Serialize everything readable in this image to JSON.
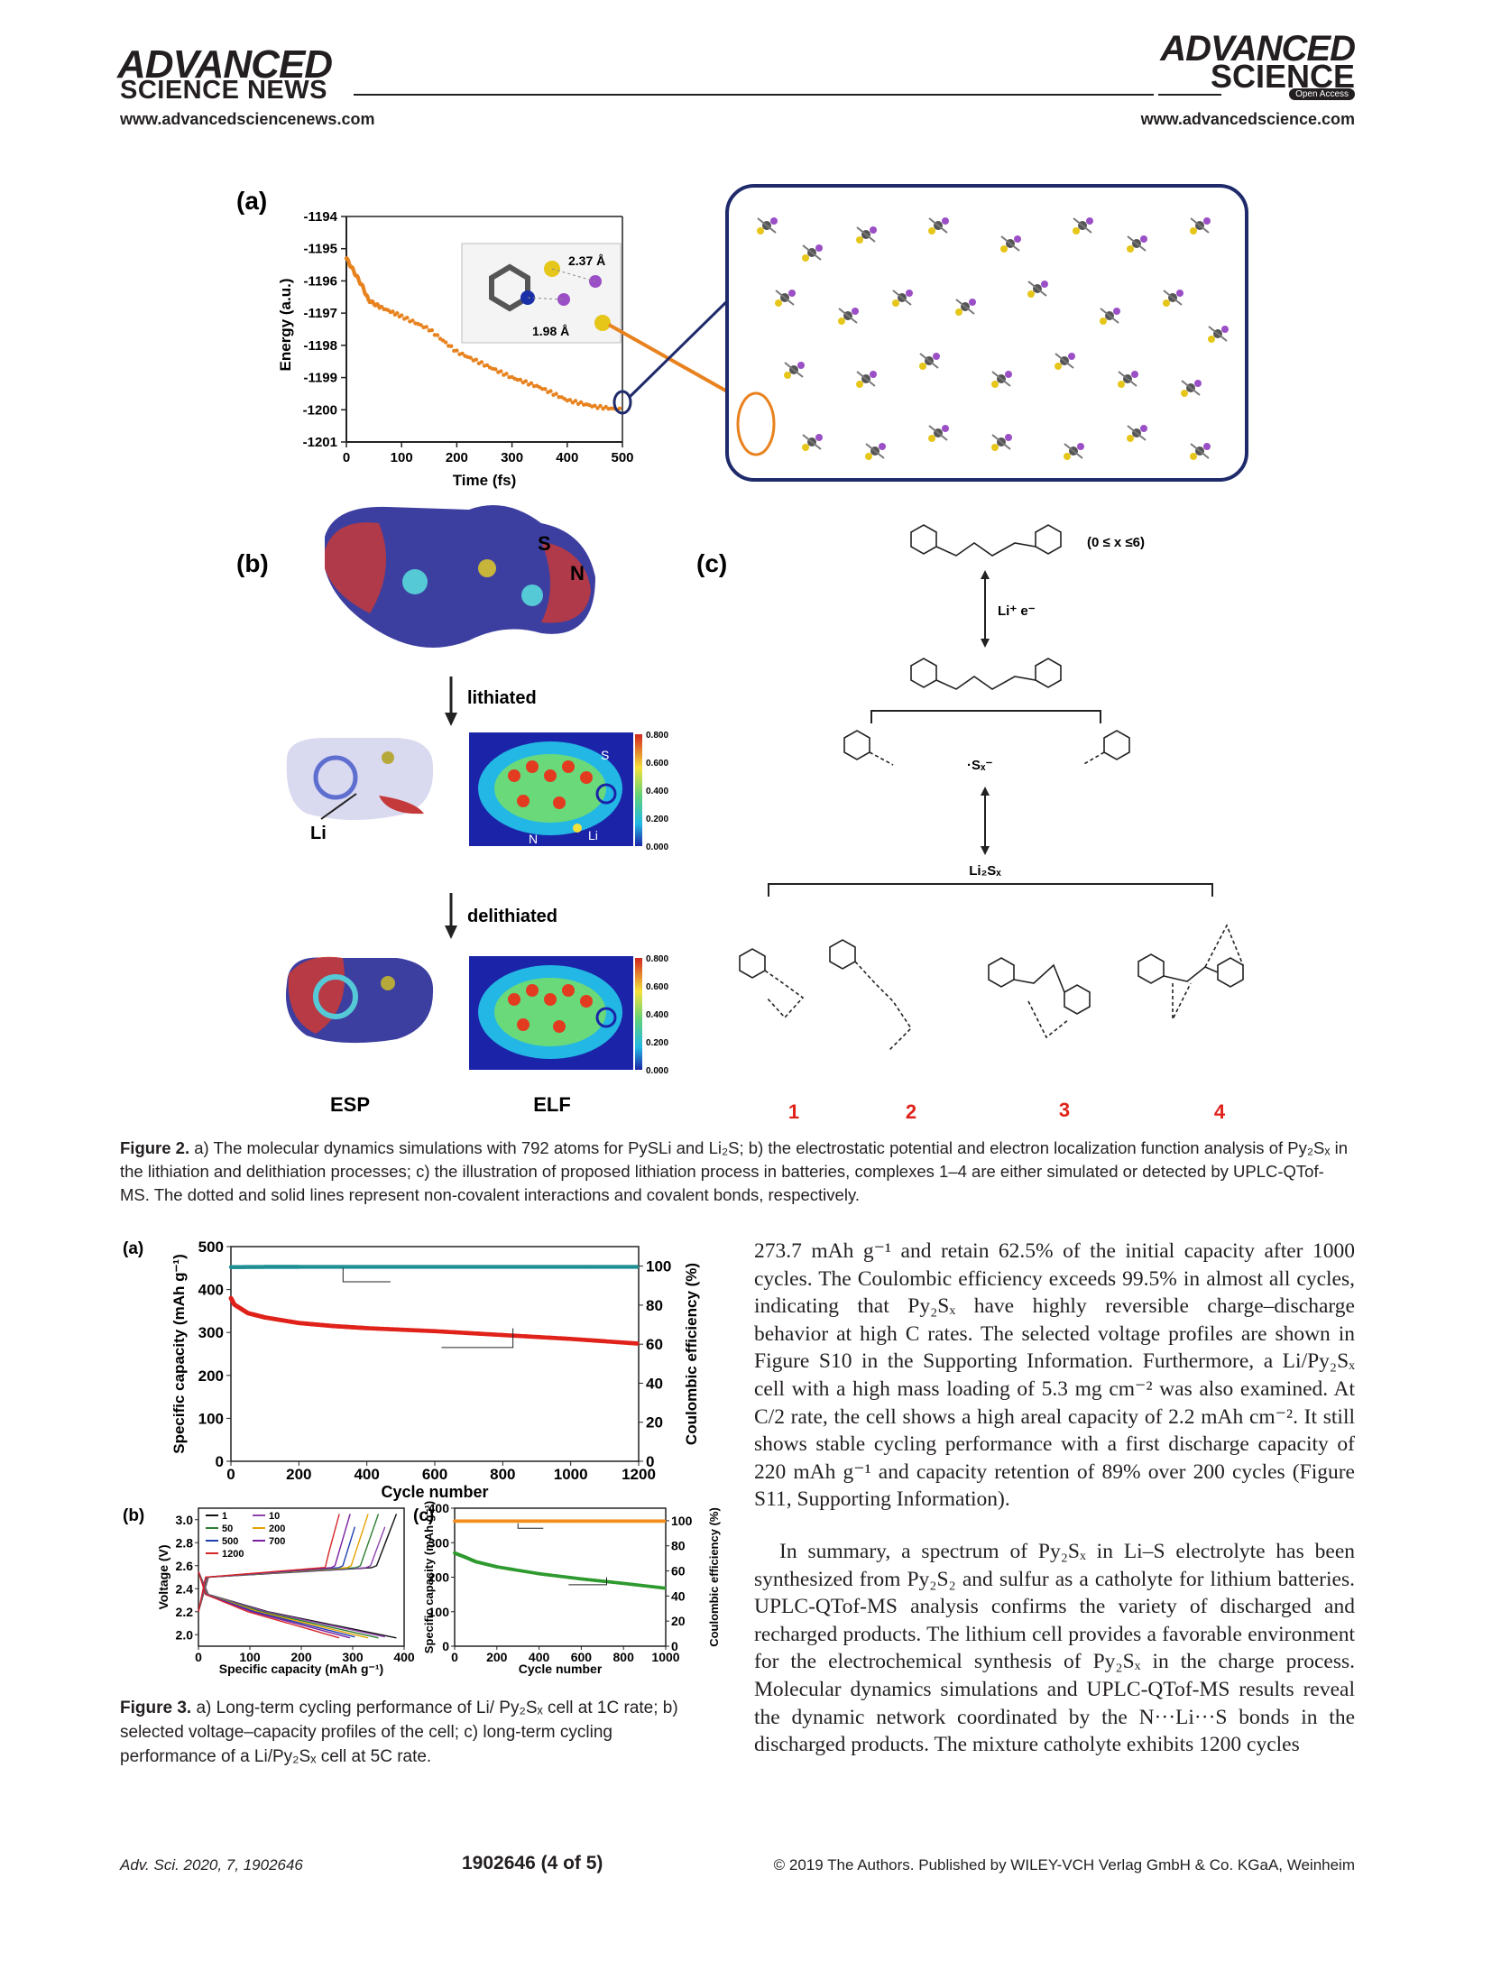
{
  "header": {
    "left_logo_line1": "ADVANCED",
    "left_logo_line2": "SCIENCE NEWS",
    "left_url": "www.advancedsciencenews.com",
    "right_logo_line1": "ADVANCED",
    "right_logo_line2": "SCIENCE",
    "right_badge": "Open Access",
    "right_url": "www.advancedscience.com"
  },
  "figure2": {
    "panel_a": {
      "label": "(a)",
      "ylabel": "Energy (a.u.)",
      "xlabel": "Time (fs)",
      "yticks": [
        "-1194",
        "-1195",
        "-1196",
        "-1197",
        "-1198",
        "-1199",
        "-1200",
        "-1201"
      ],
      "xticks": [
        "0",
        "100",
        "200",
        "300",
        "400",
        "500"
      ],
      "inset_labels": [
        "2.37 Å",
        "1.98 Å"
      ]
    },
    "panel_b": {
      "label": "(b)",
      "atom_S": "S",
      "atom_N": "N",
      "lithiated": "lithiated",
      "delithiated": "delithiated",
      "li_label": "Li",
      "elf_S": "S",
      "elf_N": "N",
      "elf_Li": "Li",
      "colorbar_ticks": [
        "0.800",
        "0.600",
        "0.400",
        "0.200",
        "0.000"
      ],
      "esp_label": "ESP",
      "elf_label": "ELF"
    },
    "panel_c": {
      "label": "(c)",
      "range_note": "(0 ≤ x ≤6)",
      "reagent": "Li⁺ e⁻",
      "radical": "·Sₓ⁻",
      "product": "Li₂Sₓ",
      "complex_numbers": [
        "1",
        "2",
        "3",
        "4"
      ]
    },
    "caption_lead": "Figure 2.",
    "caption": "a) The molecular dynamics simulations with 792 atoms for PySLi and Li₂S; b) the electrostatic potential and electron localization function analysis of Py₂Sₓ in the lithiation and delithiation processes; c) the illustration of proposed lithiation process in batteries, complexes 1–4 are either simulated or detected by UPLC-QTof-MS. The dotted and solid lines represent non-covalent interactions and covalent bonds, respectively."
  },
  "chart_data": [
    {
      "type": "line",
      "title": "",
      "xlabel": "Time (fs)",
      "ylabel": "Energy (a.u.)",
      "xlim": [
        0,
        500
      ],
      "ylim": [
        -1201,
        -1194
      ],
      "series": [
        {
          "x": [
            0,
            10,
            20,
            30,
            40,
            60,
            100,
            150,
            200,
            250,
            300,
            350,
            400,
            450,
            500
          ],
          "y": [
            -1195.3,
            -1195.6,
            -1195.9,
            -1196.2,
            -1196.6,
            -1196.8,
            -1197.1,
            -1197.5,
            -1198.2,
            -1198.6,
            -1199.0,
            -1199.3,
            -1199.7,
            -1199.9,
            -1200.0
          ]
        }
      ]
    },
    {
      "type": "scatter",
      "title": "",
      "xlabel": "Cycle number",
      "ylabel": "Specific capacity (mAh g⁻¹)",
      "y2label": "Coulombic efficiency (%)",
      "xlim": [
        0,
        1200
      ],
      "ylim": [
        0,
        500
      ],
      "y2lim": [
        0,
        110
      ],
      "xticks": [
        "0",
        "200",
        "400",
        "600",
        "800",
        "1000",
        "1200"
      ],
      "yticks": [
        "0",
        "100",
        "200",
        "300",
        "400",
        "500"
      ],
      "y2ticks": [
        "0",
        "20",
        "40",
        "60",
        "80",
        "100"
      ],
      "series": [
        {
          "axis": "left",
          "x": [
            0,
            10,
            50,
            100,
            200,
            300,
            400,
            600,
            800,
            1000,
            1200
          ],
          "y": [
            380,
            365,
            345,
            335,
            322,
            315,
            310,
            303,
            294,
            285,
            274
          ]
        },
        {
          "axis": "right",
          "x": [
            0,
            100,
            200,
            400,
            600,
            800,
            1000,
            1200
          ],
          "y": [
            99.5,
            99.6,
            99.6,
            99.6,
            99.6,
            99.6,
            99.6,
            99.6
          ]
        }
      ]
    },
    {
      "type": "line",
      "title": "",
      "xlabel": "Specific capacity (mAh g⁻¹)",
      "ylabel": "Voltage (V)",
      "xlim": [
        0,
        400
      ],
      "ylim": [
        1.9,
        3.1
      ],
      "xticks": [
        "0",
        "100",
        "200",
        "300",
        "400"
      ],
      "yticks": [
        "2.0",
        "2.2",
        "2.4",
        "2.6",
        "2.8",
        "3.0"
      ],
      "series": [
        {
          "name": "1",
          "color": "#111111",
          "capacity": 385
        },
        {
          "name": "10",
          "color": "#8e44ad",
          "capacity": 372
        },
        {
          "name": "50",
          "color": "#2e7d32",
          "capacity": 350
        },
        {
          "name": "200",
          "color": "#e6a100",
          "capacity": 330
        },
        {
          "name": "500",
          "color": "#1f3fb0",
          "capacity": 312
        },
        {
          "name": "700",
          "color": "#7a1fa2",
          "capacity": 295
        },
        {
          "name": "1200",
          "color": "#d62728",
          "capacity": 274
        }
      ]
    },
    {
      "type": "scatter",
      "title": "",
      "xlabel": "Cycle number",
      "ylabel": "Specific capacity (mAh g⁻¹)",
      "y2label": "Coulombic efficiency (%)",
      "xlim": [
        0,
        1000
      ],
      "ylim": [
        0,
        400
      ],
      "y2lim": [
        0,
        110
      ],
      "xticks": [
        "0",
        "200",
        "400",
        "600",
        "800",
        "1000"
      ],
      "yticks": [
        "0",
        "100",
        "200",
        "300",
        "400"
      ],
      "y2ticks": [
        "0",
        "20",
        "40",
        "60",
        "80",
        "100"
      ],
      "series": [
        {
          "axis": "left",
          "x": [
            0,
            50,
            100,
            200,
            400,
            600,
            800,
            1000
          ],
          "y": [
            270,
            258,
            245,
            230,
            210,
            195,
            182,
            168
          ]
        },
        {
          "axis": "right",
          "x": [
            0,
            200,
            400,
            600,
            800,
            1000
          ],
          "y": [
            99.7,
            99.7,
            99.7,
            99.7,
            99.7,
            99.7
          ]
        }
      ]
    }
  ],
  "figure3": {
    "label_a": "(a)",
    "label_b": "(b)",
    "label_c": "(c)",
    "caption_lead": "Figure 3.",
    "caption": "a) Long-term cycling performance of Li/ Py₂Sₓ cell at 1C rate; b) selected voltage–capacity profiles of the cell; c) long-term cycling performance of a Li/Py₂Sₓ cell at 5C rate."
  },
  "body": {
    "paragraph1": "273.7 mAh g⁻¹ and retain 62.5% of the initial capacity after 1000 cycles. The Coulombic efficiency exceeds 99.5% in almost all cycles, indicating that Py₂Sₓ have highly reversible charge–discharge behavior at high C rates. The selected voltage profiles are shown in Figure S10 in the Supporting Information. Furthermore, a Li/Py₂Sₓ cell with a high mass loading of 5.3 mg cm⁻² was also examined. At C/2 rate, the cell shows a high areal capacity of 2.2 mAh cm⁻². It still shows stable cycling performance with a first discharge capacity of 220 mAh g⁻¹ and capacity retention of 89% over 200 cycles (Figure S11, Supporting Information).",
    "paragraph2": "In summary, a spectrum of Py₂Sₓ in Li–S electrolyte has been synthesized from Py₂S₂ and sulfur as a catholyte for lithium batteries. UPLC-QTof-MS analysis confirms the variety of discharged and recharged products. The lithium cell provides a favorable environment for the electrochemical synthesis of Py₂Sₓ in the charge process. Molecular dynamics simulations and UPLC-QTof-MS results reveal the dynamic network coordinated by the N···Li···S bonds in the discharged products. The mixture catholyte exhibits 1200 cycles"
  },
  "footer": {
    "journal": "Adv. Sci. 2020, 7, 1902646",
    "page": "1902646  (4 of 5)",
    "copyright": "© 2019 The Authors. Published by WILEY-VCH Verlag GmbH & Co. KGaA, Weinheim"
  }
}
